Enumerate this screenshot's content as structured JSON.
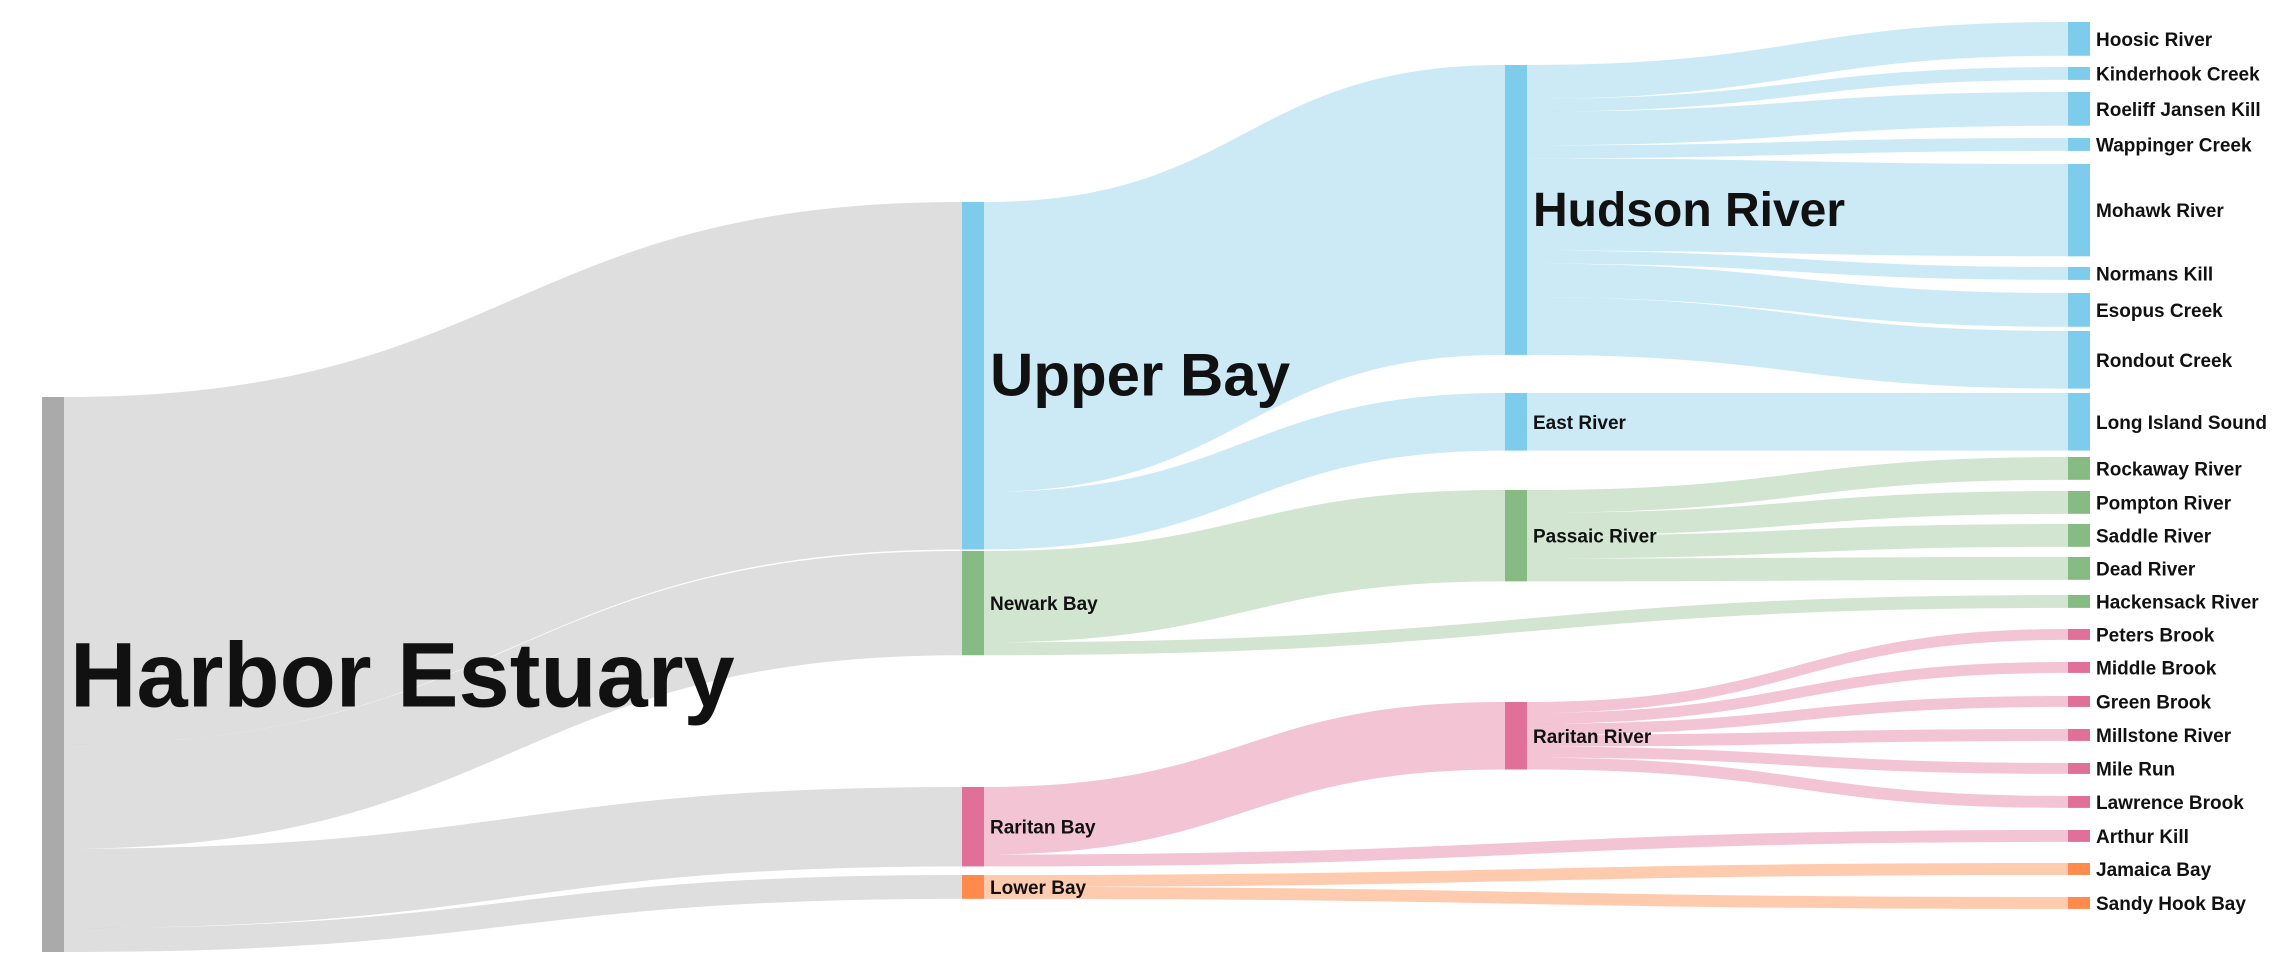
{
  "colors": {
    "gray": "#AAAAAA",
    "blue": "#7DCCEC",
    "green": "#86BC84",
    "pink": "#E07098",
    "orange": "#FF8A4C",
    "link_gray": "#DEDEDE",
    "link_blue": "#CCEAF6",
    "link_green": "#D2E5D1",
    "link_pink": "#F2C4D4",
    "link_orange": "#FFCBAE"
  },
  "nodes": [
    {
      "id": "harbor",
      "label": "Harbor Estuary",
      "color": "gray",
      "size": "root"
    },
    {
      "id": "upper",
      "label": "Upper Bay",
      "color": "blue",
      "size": "xl"
    },
    {
      "id": "newark",
      "label": "Newark Bay",
      "color": "green",
      "size": "m"
    },
    {
      "id": "raritanbay",
      "label": "Raritan Bay",
      "color": "pink",
      "size": "m"
    },
    {
      "id": "lower",
      "label": "Lower Bay",
      "color": "orange",
      "size": "m"
    },
    {
      "id": "hudson",
      "label": "Hudson River",
      "color": "blue",
      "size": "l"
    },
    {
      "id": "east",
      "label": "East River",
      "color": "blue",
      "size": "m"
    },
    {
      "id": "passaic",
      "label": "Passaic River",
      "color": "green",
      "size": "m"
    },
    {
      "id": "raritanriver",
      "label": "Raritan River",
      "color": "pink",
      "size": "m"
    },
    {
      "id": "hoosic",
      "label": "Hoosic River",
      "color": "blue",
      "size": "s"
    },
    {
      "id": "kinderhook",
      "label": "Kinderhook Creek",
      "color": "blue",
      "size": "s"
    },
    {
      "id": "roeliff",
      "label": "Roeliff Jansen Kill",
      "color": "blue",
      "size": "s"
    },
    {
      "id": "wappinger",
      "label": "Wappinger Creek",
      "color": "blue",
      "size": "s"
    },
    {
      "id": "mohawk",
      "label": "Mohawk River",
      "color": "blue",
      "size": "s"
    },
    {
      "id": "normans",
      "label": "Normans Kill",
      "color": "blue",
      "size": "s"
    },
    {
      "id": "esopus",
      "label": "Esopus Creek",
      "color": "blue",
      "size": "s"
    },
    {
      "id": "rondout",
      "label": "Rondout Creek",
      "color": "blue",
      "size": "s"
    },
    {
      "id": "lis",
      "label": "Long Island Sound",
      "color": "blue",
      "size": "s"
    },
    {
      "id": "rockaway",
      "label": "Rockaway River",
      "color": "green",
      "size": "s"
    },
    {
      "id": "pompton",
      "label": "Pompton River",
      "color": "green",
      "size": "s"
    },
    {
      "id": "saddle",
      "label": "Saddle River",
      "color": "green",
      "size": "s"
    },
    {
      "id": "dead",
      "label": "Dead River",
      "color": "green",
      "size": "s"
    },
    {
      "id": "hackensack",
      "label": "Hackensack River",
      "color": "green",
      "size": "s"
    },
    {
      "id": "peters",
      "label": "Peters Brook",
      "color": "pink",
      "size": "s"
    },
    {
      "id": "middle",
      "label": "Middle Brook",
      "color": "pink",
      "size": "s"
    },
    {
      "id": "green",
      "label": "Green Brook",
      "color": "pink",
      "size": "s"
    },
    {
      "id": "millstone",
      "label": "Millstone River",
      "color": "pink",
      "size": "s"
    },
    {
      "id": "milerun",
      "label": "Mile Run",
      "color": "pink",
      "size": "s"
    },
    {
      "id": "lawrence",
      "label": "Lawrence Brook",
      "color": "pink",
      "size": "s"
    },
    {
      "id": "arthur",
      "label": "Arthur Kill",
      "color": "pink",
      "size": "s"
    },
    {
      "id": "jamaica",
      "label": "Jamaica Bay",
      "color": "orange",
      "size": "s"
    },
    {
      "id": "sandyhook",
      "label": "Sandy Hook Bay",
      "color": "orange",
      "size": "s"
    }
  ],
  "links": [
    {
      "source": "harbor",
      "target": "upper",
      "value": 350,
      "color": "gray"
    },
    {
      "source": "harbor",
      "target": "newark",
      "value": 105,
      "color": "gray"
    },
    {
      "source": "harbor",
      "target": "raritanbay",
      "value": 80,
      "color": "gray"
    },
    {
      "source": "harbor",
      "target": "lower",
      "value": 24,
      "color": "gray"
    },
    {
      "source": "upper",
      "target": "hudson",
      "value": 292,
      "color": "blue"
    },
    {
      "source": "upper",
      "target": "east",
      "value": 58,
      "color": "blue"
    },
    {
      "source": "newark",
      "target": "passaic",
      "value": 92,
      "color": "green"
    },
    {
      "source": "newark",
      "target": "hackensack",
      "value": 13,
      "color": "green"
    },
    {
      "source": "raritanbay",
      "target": "raritanriver",
      "value": 68,
      "color": "pink"
    },
    {
      "source": "raritanbay",
      "target": "arthur",
      "value": 12,
      "color": "pink"
    },
    {
      "source": "lower",
      "target": "jamaica",
      "value": 12,
      "color": "orange"
    },
    {
      "source": "lower",
      "target": "sandyhook",
      "value": 12,
      "color": "orange"
    },
    {
      "source": "hudson",
      "target": "hoosic",
      "value": 34,
      "color": "blue"
    },
    {
      "source": "hudson",
      "target": "kinderhook",
      "value": 13,
      "color": "blue"
    },
    {
      "source": "hudson",
      "target": "roeliff",
      "value": 34,
      "color": "blue"
    },
    {
      "source": "hudson",
      "target": "wappinger",
      "value": 13,
      "color": "blue"
    },
    {
      "source": "hudson",
      "target": "mohawk",
      "value": 93,
      "color": "blue"
    },
    {
      "source": "hudson",
      "target": "normans",
      "value": 13,
      "color": "blue"
    },
    {
      "source": "hudson",
      "target": "esopus",
      "value": 34,
      "color": "blue"
    },
    {
      "source": "hudson",
      "target": "rondout",
      "value": 58,
      "color": "blue"
    },
    {
      "source": "east",
      "target": "lis",
      "value": 58,
      "color": "blue"
    },
    {
      "source": "passaic",
      "target": "rockaway",
      "value": 23,
      "color": "green"
    },
    {
      "source": "passaic",
      "target": "pompton",
      "value": 23,
      "color": "green"
    },
    {
      "source": "passaic",
      "target": "saddle",
      "value": 23,
      "color": "green"
    },
    {
      "source": "passaic",
      "target": "dead",
      "value": 23,
      "color": "green"
    },
    {
      "source": "raritanriver",
      "target": "peters",
      "value": 11,
      "color": "pink"
    },
    {
      "source": "raritanriver",
      "target": "middle",
      "value": 11,
      "color": "pink"
    },
    {
      "source": "raritanriver",
      "target": "green",
      "value": 11,
      "color": "pink"
    },
    {
      "source": "raritanriver",
      "target": "millstone",
      "value": 12,
      "color": "pink"
    },
    {
      "source": "raritanriver",
      "target": "milerun",
      "value": 11,
      "color": "pink"
    },
    {
      "source": "raritanriver",
      "target": "lawrence",
      "value": 12,
      "color": "pink"
    }
  ]
}
